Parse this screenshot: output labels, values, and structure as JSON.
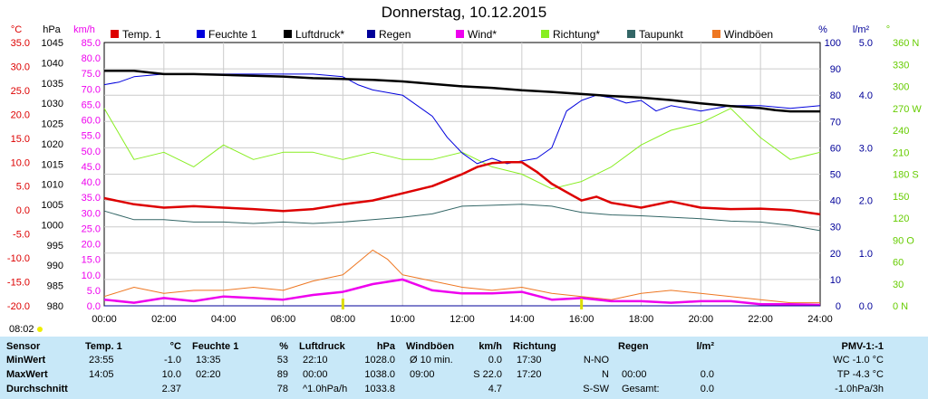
{
  "title": "Donnerstag, 10.12.2015",
  "time_label": "08:02",
  "legend": [
    {
      "label": "Temp. 1",
      "color": "#dd0000"
    },
    {
      "label": "Feuchte 1",
      "color": "#0000dd"
    },
    {
      "label": "Luftdruck*",
      "color": "#000000"
    },
    {
      "label": "Regen",
      "color": "#000099"
    },
    {
      "label": "Wind*",
      "color": "#ee00ee"
    },
    {
      "label": "Richtung*",
      "color": "#88ee22"
    },
    {
      "label": "Taupunkt",
      "color": "#336666"
    },
    {
      "label": "Windböen",
      "color": "#ee7722"
    }
  ],
  "chart_data": {
    "type": "line",
    "title": "Donnerstag, 10.12.2015",
    "x_ticks": [
      "00:00",
      "02:00",
      "04:00",
      "06:00",
      "08:00",
      "10:00",
      "12:00",
      "14:00",
      "16:00",
      "18:00",
      "20:00",
      "22:00",
      "24:00"
    ],
    "x_unit": "hours",
    "axes": {
      "temp": {
        "unit": "°C",
        "range": [
          -20,
          35
        ],
        "ticks": [
          "35.0",
          "30.0",
          "25.0",
          "20.0",
          "15.0",
          "10.0",
          "5.0",
          "0.0",
          "-5.0",
          "-10.0",
          "-15.0",
          "-20.0"
        ]
      },
      "pressure": {
        "unit": "hPa",
        "range": [
          980,
          1045
        ],
        "ticks": [
          "1045",
          "1040",
          "1035",
          "1030",
          "1025",
          "1020",
          "1015",
          "1010",
          "1005",
          "1000",
          "995",
          "990",
          "985",
          "980"
        ]
      },
      "wind": {
        "unit": "km/h",
        "range": [
          0,
          85
        ],
        "ticks": [
          "85.0",
          "80.0",
          "75.0",
          "70.0",
          "65.0",
          "60.0",
          "55.0",
          "50.0",
          "45.0",
          "40.0",
          "35.0",
          "30.0",
          "25.0",
          "20.0",
          "15.0",
          "10.0",
          "5.0",
          "0.0"
        ]
      },
      "humidity": {
        "unit": "%",
        "range": [
          0,
          100
        ],
        "ticks": [
          "100",
          "90",
          "80",
          "70",
          "60",
          "50",
          "40",
          "30",
          "20",
          "10",
          "0"
        ]
      },
      "rain": {
        "unit": "l/m²",
        "range": [
          0,
          5
        ],
        "ticks": [
          "5.0",
          "4.0",
          "3.0",
          "2.0",
          "1.0",
          "0.0"
        ]
      },
      "direction": {
        "unit": "°",
        "range": [
          0,
          360
        ],
        "ticks": [
          "360 N",
          "330",
          "300",
          "270 W",
          "240",
          "210",
          "180 S",
          "150",
          "120",
          "90 O",
          "60",
          "30",
          "0 N"
        ]
      }
    },
    "series": [
      {
        "name": "Temp. 1",
        "axis": "temp",
        "x": [
          0,
          1,
          2,
          3,
          4,
          5,
          6,
          7,
          8,
          9,
          10,
          11,
          12,
          12.5,
          13,
          13.5,
          14,
          14.5,
          15,
          16,
          16.5,
          17,
          18,
          19,
          20,
          21,
          22,
          23,
          24
        ],
        "values": [
          2.5,
          1.2,
          0.5,
          0.8,
          0.5,
          0.2,
          -0.2,
          0.2,
          1.2,
          2.0,
          3.5,
          5.0,
          7.5,
          9.0,
          9.8,
          10.0,
          10.0,
          8.0,
          5.5,
          2.0,
          2.8,
          1.5,
          0.5,
          1.8,
          0.5,
          0.2,
          0.3,
          0.0,
          -0.9
        ]
      },
      {
        "name": "Feuchte 1",
        "axis": "humidity",
        "x": [
          0,
          0.5,
          1,
          2,
          3,
          4,
          5,
          6,
          7,
          8,
          8.5,
          9,
          10,
          11,
          11.5,
          12,
          12.5,
          13,
          13.5,
          14,
          14.5,
          15,
          15.5,
          16,
          16.5,
          17,
          17.5,
          18,
          18.5,
          19,
          20,
          21,
          22,
          23,
          24
        ],
        "values": [
          84,
          85,
          87,
          88,
          88,
          88,
          88,
          88,
          88,
          87,
          84,
          82,
          80,
          72,
          64,
          58,
          54,
          56,
          54,
          55,
          56,
          60,
          74,
          78,
          80,
          79,
          77,
          78,
          74,
          76,
          74,
          76,
          76,
          75,
          76
        ]
      },
      {
        "name": "Luftdruck*",
        "axis": "pressure",
        "x": [
          0,
          1,
          2,
          3,
          4,
          5,
          6,
          7,
          8,
          9,
          10,
          11,
          12,
          13,
          14,
          15,
          16,
          17,
          18,
          19,
          20,
          21,
          22,
          22.5,
          23,
          24
        ],
        "values": [
          1038.0,
          1038.0,
          1037.2,
          1037.2,
          1037.0,
          1036.8,
          1036.6,
          1036.2,
          1036.0,
          1035.8,
          1035.4,
          1034.8,
          1034.2,
          1033.8,
          1033.2,
          1032.8,
          1032.3,
          1031.8,
          1031.4,
          1030.8,
          1030.0,
          1029.3,
          1028.8,
          1028.3,
          1028.0,
          1028.0
        ]
      },
      {
        "name": "Regen",
        "axis": "rain",
        "x": [
          0,
          24
        ],
        "values": [
          0.0,
          0.0
        ]
      },
      {
        "name": "Wind*",
        "axis": "wind",
        "x": [
          0,
          1,
          2,
          3,
          4,
          5,
          6,
          7,
          8,
          9,
          10,
          11,
          12,
          13,
          14,
          15,
          16,
          17,
          18,
          19,
          20,
          21,
          22,
          23,
          24
        ],
        "values": [
          2.0,
          1.0,
          2.5,
          1.5,
          3.0,
          2.5,
          2.0,
          3.5,
          4.5,
          7.0,
          8.5,
          5.0,
          4.0,
          4.0,
          4.5,
          2.0,
          2.5,
          1.5,
          1.5,
          1.0,
          1.5,
          1.5,
          0.5,
          0.5,
          0.3
        ]
      },
      {
        "name": "Richtung*",
        "axis": "direction",
        "x": [
          0,
          1,
          2,
          3,
          4,
          5,
          6,
          7,
          8,
          9,
          10,
          11,
          12,
          13,
          14,
          15,
          16,
          17,
          18,
          19,
          20,
          21,
          22,
          23,
          24
        ],
        "values": [
          270,
          200,
          210,
          190,
          220,
          200,
          210,
          210,
          200,
          210,
          200,
          200,
          210,
          190,
          180,
          160,
          170,
          190,
          220,
          240,
          250,
          270,
          230,
          200,
          210
        ]
      },
      {
        "name": "Taupunkt",
        "axis": "temp",
        "x": [
          0,
          1,
          2,
          3,
          4,
          5,
          6,
          7,
          8,
          9,
          10,
          11,
          12,
          13,
          14,
          15,
          16,
          17,
          18,
          19,
          20,
          21,
          22,
          23,
          24
        ],
        "values": [
          -0.2,
          -2.0,
          -2.0,
          -2.5,
          -2.5,
          -2.8,
          -2.5,
          -2.8,
          -2.5,
          -2.0,
          -1.5,
          -0.8,
          0.8,
          1.0,
          1.2,
          0.8,
          -0.5,
          -1.0,
          -1.2,
          -1.5,
          -1.8,
          -2.3,
          -2.5,
          -3.2,
          -4.3
        ]
      },
      {
        "name": "Windböen",
        "axis": "wind",
        "x": [
          0,
          1,
          2,
          3,
          4,
          5,
          6,
          7,
          8,
          8.5,
          9,
          9.5,
          10,
          11,
          12,
          13,
          14,
          15,
          16,
          17,
          18,
          19,
          20,
          21,
          22,
          23,
          24
        ],
        "values": [
          3,
          6,
          4,
          5,
          5,
          6,
          5,
          8,
          10,
          14,
          18,
          15,
          10,
          8,
          6,
          5,
          6,
          4,
          3,
          2,
          4,
          5,
          4,
          3,
          2,
          1,
          1
        ]
      }
    ]
  },
  "table": {
    "col_header": "Sensor",
    "rows": [
      "MinWert",
      "MaxWert",
      "Durchschnitt"
    ],
    "groups": [
      {
        "name": "Temp. 1",
        "unit": "°C",
        "cells": [
          [
            "23:55",
            "-1.0"
          ],
          [
            "14:05",
            "10.0"
          ],
          [
            "",
            "2.37"
          ]
        ]
      },
      {
        "name": "Feuchte 1",
        "unit": "%",
        "cells": [
          [
            "13:35",
            "53"
          ],
          [
            "02:20",
            "89"
          ],
          [
            "",
            "78"
          ]
        ]
      },
      {
        "name": "Luftdruck",
        "unit": "hPa",
        "cells": [
          [
            "22:10",
            "1028.0"
          ],
          [
            "00:00",
            "1038.0"
          ],
          [
            "^1.0hPa/h",
            "1033.8"
          ]
        ]
      },
      {
        "name": "Windböen",
        "unit": "km/h",
        "cells": [
          [
            "Ø 10 min.",
            "0.0"
          ],
          [
            "09:00",
            "S 22.0"
          ],
          [
            "",
            "4.7"
          ]
        ]
      },
      {
        "name": "Richtung",
        "unit": "",
        "cells": [
          [
            "17:30",
            "N-NO"
          ],
          [
            "17:20",
            "N"
          ],
          [
            "",
            "S-SW"
          ]
        ]
      },
      {
        "name": "Regen",
        "unit": "l/m²",
        "cells": [
          [
            "",
            ""
          ],
          [
            "00:00",
            "0.0"
          ],
          [
            "Gesamt:",
            "0.0"
          ]
        ]
      }
    ],
    "pmv": {
      "header": "PMV-1:-1",
      "rows": [
        "WC -1.0 °C",
        "TP -4.3 °C",
        "-1.0hPa/3h"
      ]
    }
  }
}
